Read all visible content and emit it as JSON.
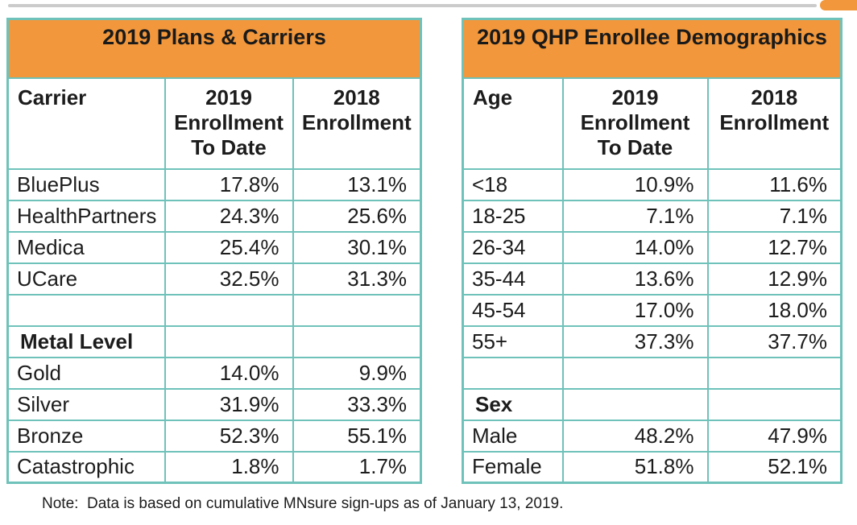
{
  "colors": {
    "accent_orange": "#F2973B",
    "border_teal": "#6FC2BA",
    "divider_gray": "#CBCBCB"
  },
  "note": "Note:  Data is based on cumulative MNsure sign-ups as of January 13, 2019.",
  "tables": [
    {
      "title": "2019 Plans & Carriers",
      "col_headers": [
        "Carrier",
        [
          "2019",
          "Enrollment",
          "To Date"
        ],
        [
          "2018",
          "Enrollment"
        ]
      ],
      "rows": [
        {
          "label": "BluePlus",
          "y2019": "17.8%",
          "y2018": "13.1%",
          "bold": false
        },
        {
          "label": "HealthPartners",
          "y2019": "24.3%",
          "y2018": "25.6%",
          "bold": false
        },
        {
          "label": "Medica",
          "y2019": "25.4%",
          "y2018": "30.1%",
          "bold": false
        },
        {
          "label": "UCare",
          "y2019": "32.5%",
          "y2018": "31.3%",
          "bold": false
        },
        {
          "label": "",
          "y2019": "",
          "y2018": "",
          "bold": false
        },
        {
          "label": "Metal Level",
          "y2019": "",
          "y2018": "",
          "bold": true
        },
        {
          "label": "Gold",
          "y2019": "14.0%",
          "y2018": "9.9%",
          "bold": false
        },
        {
          "label": "Silver",
          "y2019": "31.9%",
          "y2018": "33.3%",
          "bold": false
        },
        {
          "label": "Bronze",
          "y2019": "52.3%",
          "y2018": "55.1%",
          "bold": false
        },
        {
          "label": "Catastrophic",
          "y2019": "1.8%",
          "y2018": "1.7%",
          "bold": false
        }
      ]
    },
    {
      "title": "2019 QHP Enrollee Demographics",
      "col_headers": [
        "Age",
        [
          "2019",
          "Enrollment",
          "To Date"
        ],
        [
          "2018",
          "Enrollment"
        ]
      ],
      "rows": [
        {
          "label": "<18",
          "y2019": "10.9%",
          "y2018": "11.6%",
          "bold": false
        },
        {
          "label": "18-25",
          "y2019": "7.1%",
          "y2018": "7.1%",
          "bold": false
        },
        {
          "label": "26-34",
          "y2019": "14.0%",
          "y2018": "12.7%",
          "bold": false
        },
        {
          "label": "35-44",
          "y2019": "13.6%",
          "y2018": "12.9%",
          "bold": false
        },
        {
          "label": "45-54",
          "y2019": "17.0%",
          "y2018": "18.0%",
          "bold": false
        },
        {
          "label": "55+",
          "y2019": "37.3%",
          "y2018": "37.7%",
          "bold": false
        },
        {
          "label": "",
          "y2019": "",
          "y2018": "",
          "bold": false
        },
        {
          "label": "Sex",
          "y2019": "",
          "y2018": "",
          "bold": true
        },
        {
          "label": "Male",
          "y2019": "48.2%",
          "y2018": "47.9%",
          "bold": false
        },
        {
          "label": "Female",
          "y2019": "51.8%",
          "y2018": "52.1%",
          "bold": false
        }
      ]
    }
  ]
}
